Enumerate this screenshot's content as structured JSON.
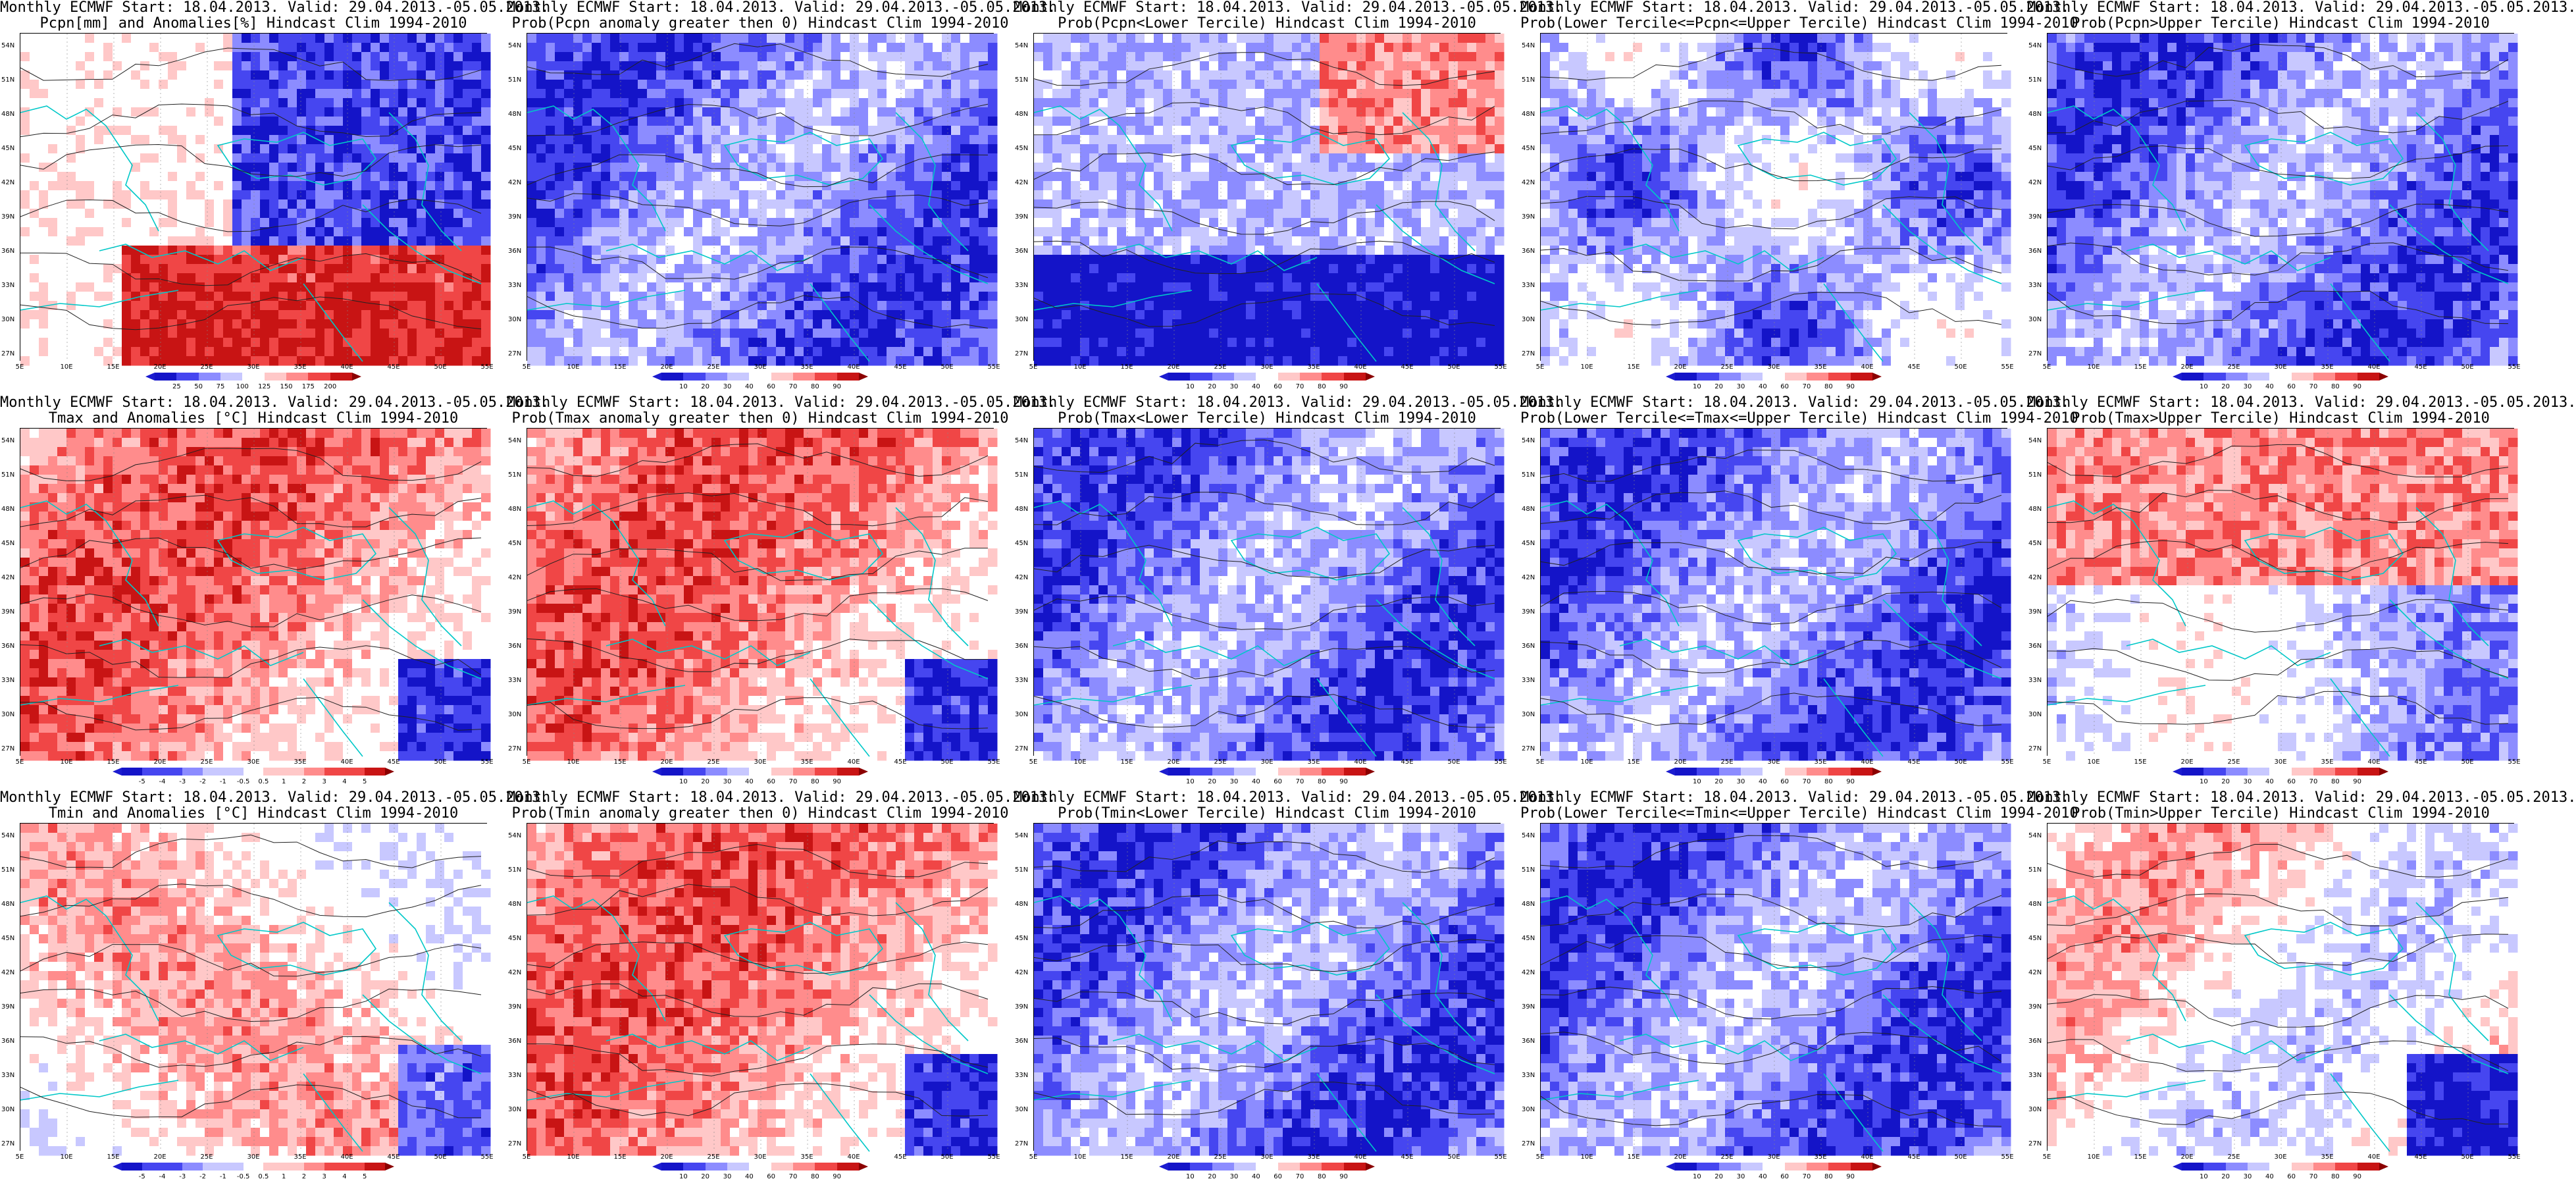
{
  "x_ticks": [
    "5E",
    "10E",
    "15E",
    "20E",
    "25E",
    "30E",
    "35E",
    "40E",
    "45E",
    "50E",
    "55E"
  ],
  "y_ticks": [
    "54N",
    "51N",
    "48N",
    "45N",
    "42N",
    "39N",
    "36N",
    "33N",
    "30N",
    "27N"
  ],
  "colors": {
    "blue3": "#1414c8",
    "blue2": "#4646f0",
    "blue1": "#8c8cff",
    "blue0": "#c8c8ff",
    "white": "#ffffff",
    "red0": "#ffc8c8",
    "red1": "#ff8c8c",
    "red2": "#f04646",
    "red3": "#c81414",
    "coast": "#00c8c8",
    "contour": "#222222"
  },
  "panels": [
    {
      "title1": "Monthly ECMWF Start: 18.04.2013. Valid: 29.04.2013.-05.05.2013.",
      "title2": "Pcpn[mm] and Anomalies[%] Hindcast Clim 1994-2010",
      "cbar": [
        "25",
        "50",
        "75",
        "100",
        "125",
        "150",
        "175",
        "200"
      ],
      "scheme": "precip_anom"
    },
    {
      "title1": "Monthly ECMWF Start: 18.04.2013. Valid: 29.04.2013.-05.05.2013.",
      "title2": "Prob(Pcpn anomaly greater then 0) Hindcast Clim 1994-2010",
      "cbar": [
        "10",
        "20",
        "30",
        "40",
        "60",
        "70",
        "80",
        "90"
      ],
      "scheme": "blue_dom"
    },
    {
      "title1": "Monthly ECMWF Start: 18.04.2013. Valid: 29.04.2013.-05.05.2013.",
      "title2": "Prob(Pcpn<Lower Tercile) Hindcast Clim 1994-2010",
      "cbar": [
        "10",
        "20",
        "30",
        "40",
        "60",
        "70",
        "80",
        "90"
      ],
      "scheme": "blue_south"
    },
    {
      "title1": "Monthly ECMWF Start: 18.04.2013. Valid: 29.04.2013.-05.05.2013.",
      "title2": "Prob(Lower Tercile<=Pcpn<=Upper Tercile) Hindcast Clim 1994-2010",
      "cbar": [
        "10",
        "20",
        "30",
        "40",
        "60",
        "70",
        "80",
        "90"
      ],
      "scheme": "mixed"
    },
    {
      "title1": "Monthly ECMWF Start: 18.04.2013. Valid: 29.04.2013.-05.05.2013.",
      "title2": "Prob(Pcpn>Upper Tercile) Hindcast Clim 1994-2010",
      "cbar": [
        "10",
        "20",
        "30",
        "40",
        "60",
        "70",
        "80",
        "90"
      ],
      "scheme": "blue_dom"
    },
    {
      "title1": "Monthly ECMWF Start: 18.04.2013. Valid: 29.04.2013.-05.05.2013.",
      "title2": "Tmax and Anomalies [°C] Hindcast Clim 1994-2010",
      "cbar": [
        "-5",
        "-4",
        "-3",
        "-2",
        "-1",
        "-0.5",
        "0.5",
        "1",
        "2",
        "3",
        "4",
        "5"
      ],
      "scheme": "red_dom"
    },
    {
      "title1": "Monthly ECMWF Start: 18.04.2013. Valid: 29.04.2013.-05.05.2013.",
      "title2": "Prob(Tmax anomaly greater then 0) Hindcast Clim 1994-2010",
      "cbar": [
        "10",
        "20",
        "30",
        "40",
        "60",
        "70",
        "80",
        "90"
      ],
      "scheme": "red_dom"
    },
    {
      "title1": "Monthly ECMWF Start: 18.04.2013. Valid: 29.04.2013.-05.05.2013.",
      "title2": "Prob(Tmax<Lower Tercile) Hindcast Clim 1994-2010",
      "cbar": [
        "10",
        "20",
        "30",
        "40",
        "60",
        "70",
        "80",
        "90"
      ],
      "scheme": "blue_dom"
    },
    {
      "title1": "Monthly ECMWF Start: 18.04.2013. Valid: 29.04.2013.-05.05.2013.",
      "title2": "Prob(Lower Tercile<=Tmax<=Upper Tercile) Hindcast Clim 1994-2010",
      "cbar": [
        "10",
        "20",
        "30",
        "40",
        "60",
        "70",
        "80",
        "90"
      ],
      "scheme": "blue_dom"
    },
    {
      "title1": "Monthly ECMWF Start: 18.04.2013. Valid: 29.04.2013.-05.05.2013.",
      "title2": "Prob(Tmax>Upper Tercile) Hindcast Clim 1994-2010",
      "cbar": [
        "10",
        "20",
        "30",
        "40",
        "60",
        "70",
        "80",
        "90"
      ],
      "scheme": "red_north"
    },
    {
      "title1": "Monthly ECMWF Start: 18.04.2013. Valid: 29.04.2013.-05.05.2013.",
      "title2": "Tmin and Anomalies [°C] Hindcast Clim 1994-2010",
      "cbar": [
        "-5",
        "-4",
        "-3",
        "-2",
        "-1",
        "-0.5",
        "0.5",
        "1",
        "2",
        "3",
        "4",
        "5"
      ],
      "scheme": "red_light"
    },
    {
      "title1": "Monthly ECMWF Start: 18.04.2013. Valid: 29.04.2013.-05.05.2013.",
      "title2": "Prob(Tmin anomaly greater then 0) Hindcast Clim 1994-2010",
      "cbar": [
        "10",
        "20",
        "30",
        "40",
        "60",
        "70",
        "80",
        "90"
      ],
      "scheme": "red_dom"
    },
    {
      "title1": "Monthly ECMWF Start: 18.04.2013. Valid: 29.04.2013.-05.05.2013.",
      "title2": "Prob(Tmin<Lower Tercile) Hindcast Clim 1994-2010",
      "cbar": [
        "10",
        "20",
        "30",
        "40",
        "60",
        "70",
        "80",
        "90"
      ],
      "scheme": "blue_dom"
    },
    {
      "title1": "Monthly ECMWF Start: 18.04.2013. Valid: 29.04.2013.-05.05.2013.",
      "title2": "Prob(Lower Tercile<=Tmin<=Upper Tercile) Hindcast Clim 1994-2010",
      "cbar": [
        "10",
        "20",
        "30",
        "40",
        "60",
        "70",
        "80",
        "90"
      ],
      "scheme": "blue_dom"
    },
    {
      "title1": "Monthly ECMWF Start: 18.04.2013. Valid: 29.04.2013.-05.05.2013.",
      "title2": "Prob(Tmin>Upper Tercile) Hindcast Clim 1994-2010",
      "cbar": [
        "10",
        "20",
        "30",
        "40",
        "60",
        "70",
        "80",
        "90"
      ],
      "scheme": "mixed_red"
    }
  ]
}
